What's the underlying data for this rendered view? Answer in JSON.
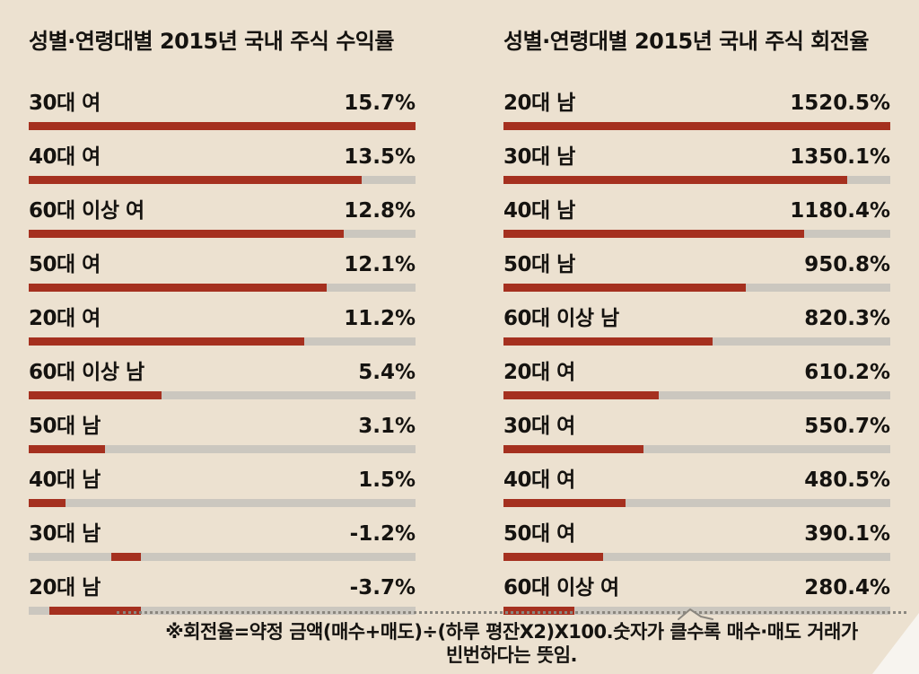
{
  "theme": {
    "background": "#ece1d0",
    "bar": "#a5301f",
    "track": "#cbc7bf",
    "text": "#151310"
  },
  "footnote": {
    "line1": "※회전율=약정 금액(매수+매도)÷(하루 평잔X2)X100.숫자가 클수록 매수·매도 거래가",
    "line2": "빈번하다는 뜻임."
  },
  "chart_data": [
    {
      "type": "bar",
      "orientation": "horizontal",
      "title": "성별·연령대별 2015년 국내 주식 수익률",
      "unit": "%",
      "categories": [
        "30대 여",
        "40대 여",
        "60대 이상 여",
        "50대 여",
        "20대 여",
        "60대 이상 남",
        "50대 남",
        "40대 남",
        "30대 남",
        "20대 남"
      ],
      "values": [
        15.7,
        13.5,
        12.8,
        12.1,
        11.2,
        5.4,
        3.1,
        1.5,
        -1.2,
        -3.7
      ],
      "value_labels": [
        "15.7%",
        "13.5%",
        "12.8%",
        "12.1%",
        "11.2%",
        "5.4%",
        "3.1%",
        "1.5%",
        "-1.2%",
        "-3.7%"
      ],
      "xlim": [
        -5,
        15.7
      ],
      "grid": false,
      "legend": "none"
    },
    {
      "type": "bar",
      "orientation": "horizontal",
      "title": "성별·연령대별 2015년 국내 주식 회전율",
      "unit": "%",
      "categories": [
        "20대 남",
        "30대 남",
        "40대 남",
        "50대 남",
        "60대 이상 남",
        "20대 여",
        "30대 여",
        "40대 여",
        "50대 여",
        "60대 이상 여"
      ],
      "values": [
        1520.5,
        1350.1,
        1180.4,
        950.8,
        820.3,
        610.2,
        550.7,
        480.5,
        390.1,
        280.4
      ],
      "value_labels": [
        "1520.5%",
        "1350.1%",
        "1180.4%",
        "950.8%",
        "820.3%",
        "610.2%",
        "550.7%",
        "480.5%",
        "390.1%",
        "280.4%"
      ],
      "xlim": [
        0,
        1520.5
      ],
      "grid": false,
      "legend": "none"
    }
  ]
}
